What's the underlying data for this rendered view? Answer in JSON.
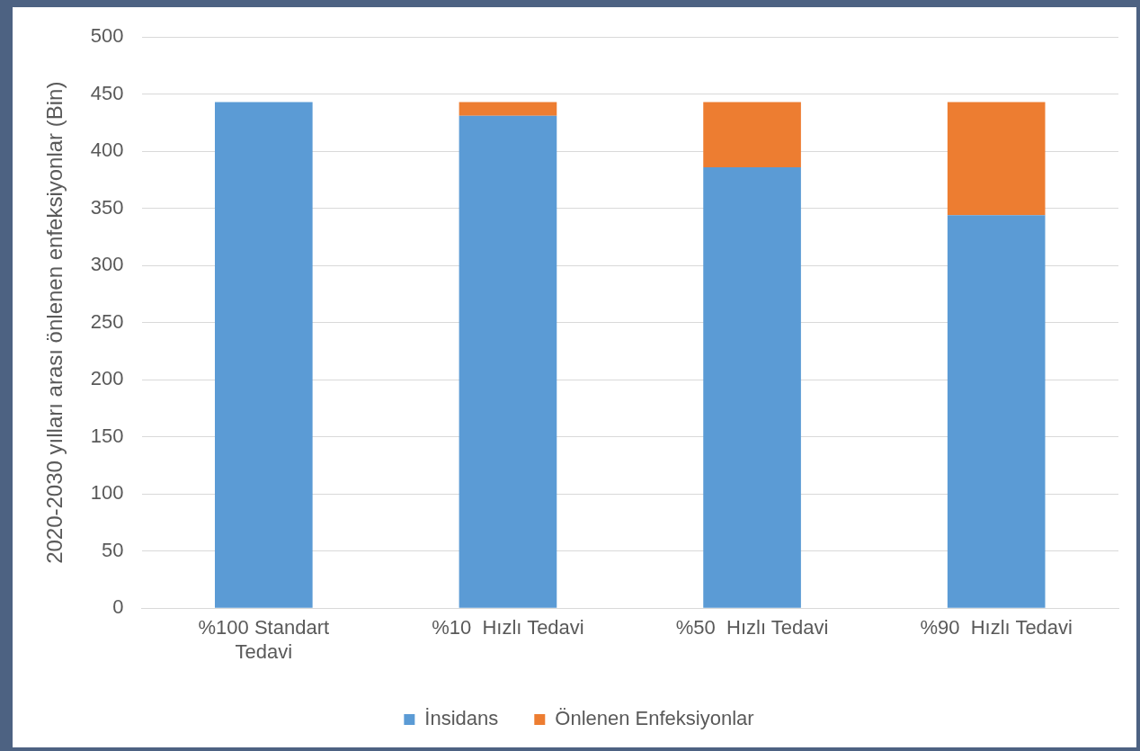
{
  "chart_data": {
    "type": "bar",
    "stacked": true,
    "categories": [
      "%100 Standart Tedavi",
      "%10  Hızlı Tedavi",
      "%50  Hızlı Tedavi",
      "%90  Hızlı Tedavi"
    ],
    "series": [
      {
        "name": "İnsidans",
        "color": "#5b9bd5",
        "values": [
          443,
          431,
          386,
          344
        ]
      },
      {
        "name": "Önlenen Enfeksiyonlar",
        "color": "#ed7d31",
        "values": [
          0,
          12,
          57,
          99
        ]
      }
    ],
    "ylabel": "2020-2030 yılları arası önlenen enfeksiyonlar (Bin)",
    "ylim": [
      0,
      500
    ],
    "yticks": [
      0,
      50,
      100,
      150,
      200,
      250,
      300,
      350,
      400,
      450,
      500
    ],
    "grid": "y",
    "legend": "bottom"
  }
}
